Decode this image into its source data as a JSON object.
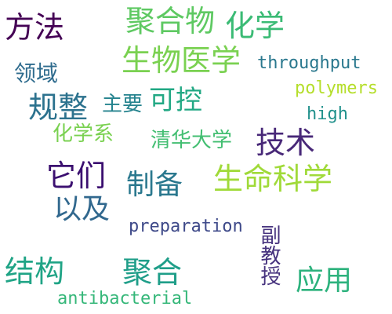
{
  "words": [
    {
      "text": "方法",
      "color": "#440154"
    },
    {
      "text": "聚合物",
      "color": "#5ec962"
    },
    {
      "text": "化学",
      "color": "#3bbb75"
    },
    {
      "text": "生物医学",
      "color": "#7ad151"
    },
    {
      "text": "throughput",
      "color": "#2a788e"
    },
    {
      "text": "领域",
      "color": "#2f6c8e"
    },
    {
      "text": "polymers",
      "color": "#b5de2b"
    },
    {
      "text": "规整",
      "color": "#2c728e"
    },
    {
      "text": "主要",
      "color": "#25838e"
    },
    {
      "text": "可控",
      "color": "#22a884"
    },
    {
      "text": "high",
      "color": "#21918c"
    },
    {
      "text": "化学系",
      "color": "#7ad151"
    },
    {
      "text": "清华大学",
      "color": "#42be71"
    },
    {
      "text": "技术",
      "color": "#482878"
    },
    {
      "text": "它们",
      "color": "#3b0f70"
    },
    {
      "text": "制备",
      "color": "#2a788e"
    },
    {
      "text": "生命科学",
      "color": "#a0da39"
    },
    {
      "text": "以及",
      "color": "#31688e"
    },
    {
      "text": "preparation",
      "color": "#3e4989"
    },
    {
      "text": "副教授",
      "color": "#46327e"
    },
    {
      "text": "结构",
      "color": "#20a486"
    },
    {
      "text": "聚合",
      "color": "#1f9e89"
    },
    {
      "text": "应用",
      "color": "#2db27d"
    },
    {
      "text": "antibacterial",
      "color": "#35b779"
    }
  ]
}
